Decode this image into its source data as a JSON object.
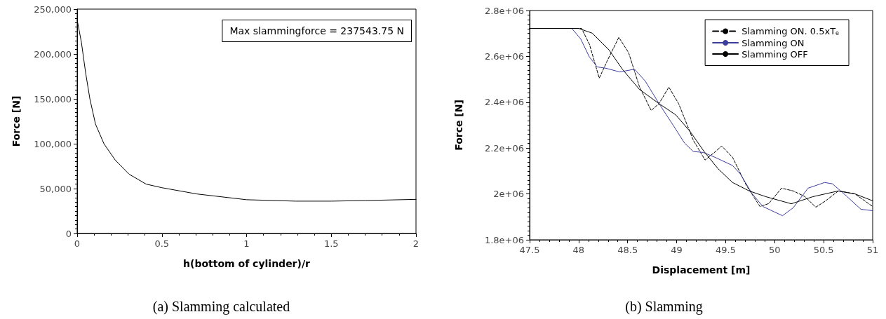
{
  "chart_data": [
    {
      "type": "line",
      "xlabel": "h(bottom of cylinder)/r",
      "ylabel": "Force [N]",
      "xlim": [
        0,
        2
      ],
      "xticks": [
        0,
        0.5,
        1,
        1.5,
        2
      ],
      "ylim": [
        0,
        250000
      ],
      "yticks": [
        {
          "value": 0,
          "label": "0"
        },
        {
          "value": 50000,
          "label": "50,000"
        },
        {
          "value": 100000,
          "label": "100,000"
        },
        {
          "value": 150000,
          "label": "150,000"
        },
        {
          "value": 200000,
          "label": "200,000"
        },
        {
          "value": 250000,
          "label": "250,000"
        }
      ],
      "grid": false,
      "legend": false,
      "marker": "none",
      "annotations": [
        "Max slammingforce = 237543.75 N",
        "(a) Slamming calculated"
      ],
      "series": [
        {
          "color": "#000000",
          "line_style": "solid",
          "x": [
            0,
            0.025,
            0.05,
            0.075,
            0.108,
            0.158,
            0.224,
            0.307,
            0.407,
            0.5,
            0.707,
            1,
            1.29,
            1.5,
            1.7,
            2
          ],
          "values": [
            238000,
            213000,
            179000,
            150000,
            122000,
            100000,
            82000,
            66000,
            55000,
            51000,
            44000,
            37600,
            36000,
            36000,
            36700,
            38000
          ]
        }
      ]
    },
    {
      "type": "line",
      "xlabel": "Displacement [m]",
      "ylabel": "Force [N]",
      "xlim": [
        47.5,
        51
      ],
      "xticks": [
        47.5,
        48,
        48.5,
        49,
        49.5,
        50,
        50.5,
        51
      ],
      "ylim": [
        1800000,
        2800000
      ],
      "yticks": [
        {
          "value": 1800000,
          "label": "1.8e+06"
        },
        {
          "value": 2000000,
          "label": "2e+06"
        },
        {
          "value": 2200000,
          "label": "2.2e+06"
        },
        {
          "value": 2400000,
          "label": "2.4e+06"
        },
        {
          "value": 2600000,
          "label": "2.6e+06"
        },
        {
          "value": 2800000,
          "label": "2.8e+06"
        }
      ],
      "grid": false,
      "legend": "top right",
      "marker": "none",
      "annotations": [
        "(b) Slamming"
      ],
      "series": [
        {
          "name": "Slamming ON. 0.5xT$_{e}$",
          "color": "#000000",
          "line_style": "dashed",
          "x": [
            47.5,
            48.03,
            48.11,
            48.21,
            48.29,
            48.41,
            48.51,
            48.62,
            48.74,
            48.82,
            48.92,
            49.02,
            49.17,
            49.29,
            49.38,
            49.46,
            49.57,
            49.71,
            49.85,
            49.94,
            50.07,
            50.19,
            50.31,
            50.42,
            50.52,
            50.65,
            50.82,
            51
          ],
          "values": [
            2722000,
            2722000,
            2653000,
            2505000,
            2579000,
            2683000,
            2616000,
            2468000,
            2364000,
            2394000,
            2466000,
            2394000,
            2234000,
            2148000,
            2179000,
            2209000,
            2160000,
            2038000,
            1945000,
            1958000,
            2025000,
            2013000,
            1988000,
            1942000,
            1970000,
            2013000,
            2000000,
            1945000
          ]
        },
        {
          "name": "Slamming ON",
          "color": "#3d3d9e",
          "line_style": "solid",
          "x": [
            47.5,
            47.93,
            48.02,
            48.11,
            48.19,
            48.28,
            48.42,
            48.57,
            48.68,
            48.82,
            48.97,
            49.08,
            49.17,
            49.27,
            49.39,
            49.57,
            49.65,
            49.77,
            49.88,
            50.08,
            50.19,
            50.34,
            50.51,
            50.59,
            50.74,
            50.88,
            51
          ],
          "values": [
            2722000,
            2722000,
            2677000,
            2597000,
            2554000,
            2548000,
            2532000,
            2544000,
            2492000,
            2394000,
            2296000,
            2222000,
            2185000,
            2181000,
            2160000,
            2124000,
            2087000,
            2001000,
            1945000,
            1905000,
            1940000,
            2025000,
            2050000,
            2044000,
            1988000,
            1933000,
            1927000
          ]
        },
        {
          "name": "Slamming OFF",
          "color": "#000000",
          "line_style": "solid",
          "x": [
            47.5,
            48.0,
            48.14,
            48.31,
            48.45,
            48.62,
            48.82,
            48.99,
            49.14,
            49.28,
            49.42,
            49.57,
            49.74,
            49.91,
            50.17,
            50.39,
            50.65,
            50.82,
            51
          ],
          "values": [
            2722000,
            2722000,
            2701000,
            2628000,
            2542000,
            2456000,
            2394000,
            2345000,
            2271000,
            2185000,
            2111000,
            2050000,
            2013000,
            1988000,
            1957000,
            1988000,
            2013000,
            2000000,
            1970000
          ]
        }
      ]
    }
  ]
}
